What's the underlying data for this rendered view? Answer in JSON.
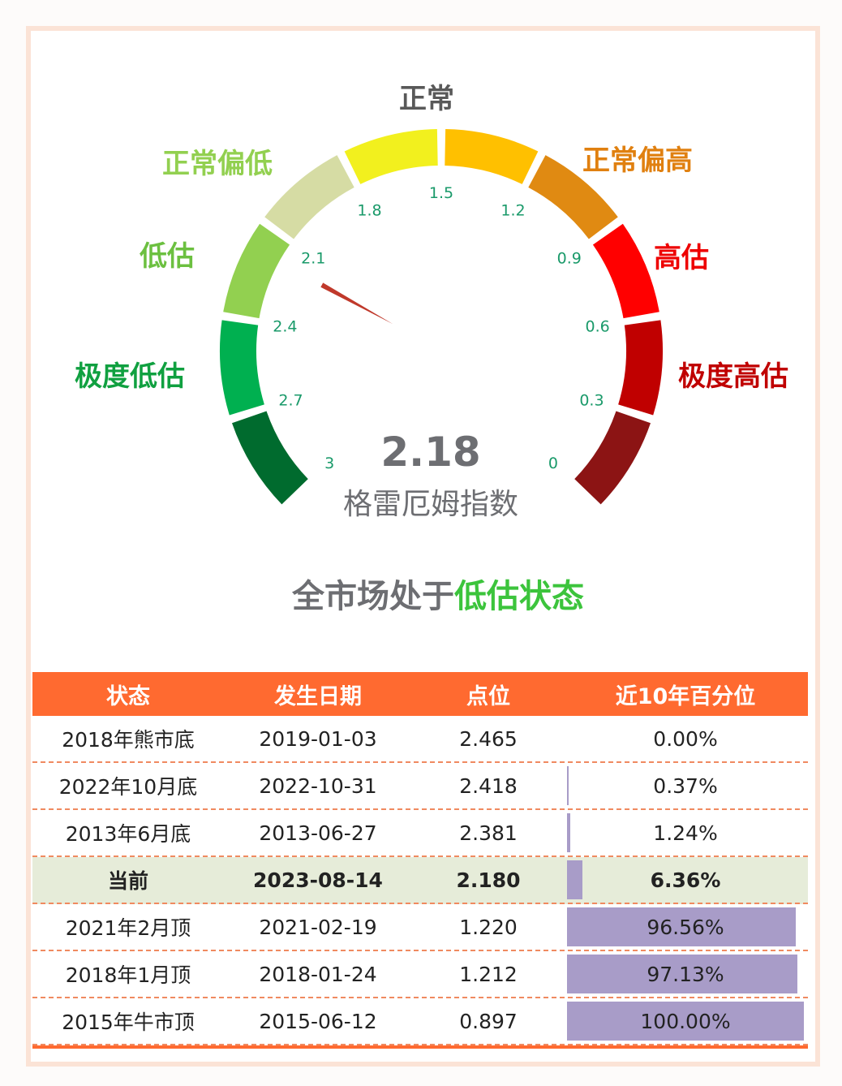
{
  "chart_data": {
    "type": "gauge",
    "title": "格雷厄姆指数",
    "value": 2.18,
    "value_label": "2.18",
    "range": [
      3,
      0
    ],
    "ticks": [
      "3",
      "2.7",
      "2.4",
      "2.1",
      "1.8",
      "1.5",
      "1.2",
      "0.9",
      "0.6",
      "0.3",
      "0"
    ],
    "segment_colors": [
      "#006b2e",
      "#00b050",
      "#92d050",
      "#d6dca4",
      "#f2f01e",
      "#ffc000",
      "#e08a12",
      "#ff0000",
      "#c00000",
      "#8c1414"
    ],
    "needle_color": "#c0392b",
    "categories": [
      {
        "label": "极度低估",
        "color": "#10a040"
      },
      {
        "label": "低估",
        "color": "#6cc040"
      },
      {
        "label": "正常偏低",
        "color": "#92d050"
      },
      {
        "label": "正常",
        "color": "#595959"
      },
      {
        "label": "正常偏高",
        "color": "#e08010"
      },
      {
        "label": "高估",
        "color": "#ee0000"
      },
      {
        "label": "极度高估",
        "color": "#c00000"
      }
    ]
  },
  "status": {
    "prefix": "全市场处于",
    "highlight": "低估状态"
  },
  "table": {
    "headers": [
      "状态",
      "发生日期",
      "点位",
      "近10年百分位"
    ],
    "rows": [
      {
        "state": "2018年熊市底",
        "date": "2019-01-03",
        "level": "2.465",
        "pct": "0.00%",
        "pct_value": 0.0
      },
      {
        "state": "2022年10月底",
        "date": "2022-10-31",
        "level": "2.418",
        "pct": "0.37%",
        "pct_value": 0.37
      },
      {
        "state": "2013年6月底",
        "date": "2013-06-27",
        "level": "2.381",
        "pct": "1.24%",
        "pct_value": 1.24
      },
      {
        "state": "当前",
        "date": "2023-08-14",
        "level": "2.180",
        "pct": "6.36%",
        "pct_value": 6.36,
        "current": true
      },
      {
        "state": "2021年2月顶",
        "date": "2021-02-19",
        "level": "1.220",
        "pct": "96.56%",
        "pct_value": 96.56
      },
      {
        "state": "2018年1月顶",
        "date": "2018-01-24",
        "level": "1.212",
        "pct": "97.13%",
        "pct_value": 97.13
      },
      {
        "state": "2015年牛市顶",
        "date": "2015-06-12",
        "level": "0.897",
        "pct": "100.00%",
        "pct_value": 100.0
      }
    ],
    "bar_color": "#a89cc8",
    "header_color": "#ff6a30"
  }
}
